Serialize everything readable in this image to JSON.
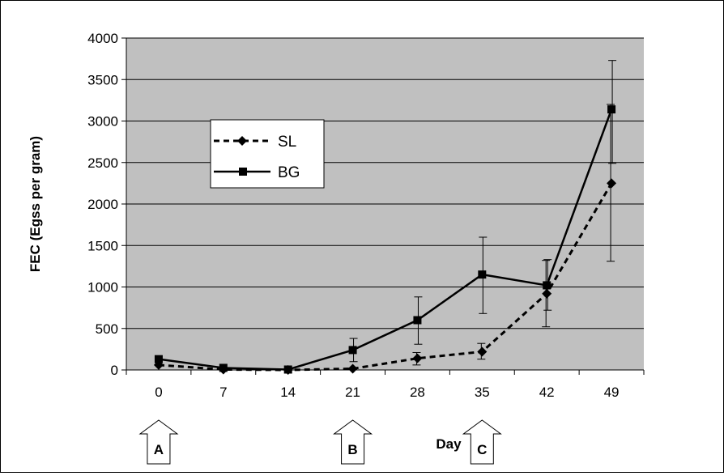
{
  "chart_data": {
    "type": "line",
    "xlabel": "Day",
    "ylabel": "FEC (Egss per gram)",
    "categories": [
      "0",
      "7",
      "14",
      "21",
      "28",
      "35",
      "42",
      "49"
    ],
    "y_ticks": [
      "0",
      "500",
      "1000",
      "1500",
      "2000",
      "2500",
      "3000",
      "3500",
      "4000"
    ],
    "ylim": [
      0,
      4000
    ],
    "grid": "horizontal",
    "plot_background": "#c0c0c0",
    "legend_position": "left",
    "series": [
      {
        "name": "SL",
        "style": "dashed",
        "marker": "diamond",
        "values": [
          60,
          5,
          0,
          15,
          140,
          220,
          920,
          2250
        ],
        "error_low": [
          null,
          null,
          null,
          null,
          60,
          130,
          520,
          1310
        ],
        "error_high": [
          null,
          null,
          null,
          null,
          210,
          320,
          1320,
          3200
        ]
      },
      {
        "name": "BG",
        "style": "solid",
        "marker": "square",
        "values": [
          130,
          25,
          5,
          240,
          600,
          1150,
          1020,
          3140
        ],
        "error_low": [
          null,
          null,
          null,
          100,
          310,
          680,
          720,
          2490
        ],
        "error_high": [
          null,
          null,
          null,
          380,
          880,
          1600,
          1330,
          3730
        ]
      }
    ],
    "annotations": [
      {
        "label": "A",
        "day": "0"
      },
      {
        "label": "B",
        "day": "21"
      },
      {
        "label": "C",
        "day": "35"
      }
    ]
  }
}
